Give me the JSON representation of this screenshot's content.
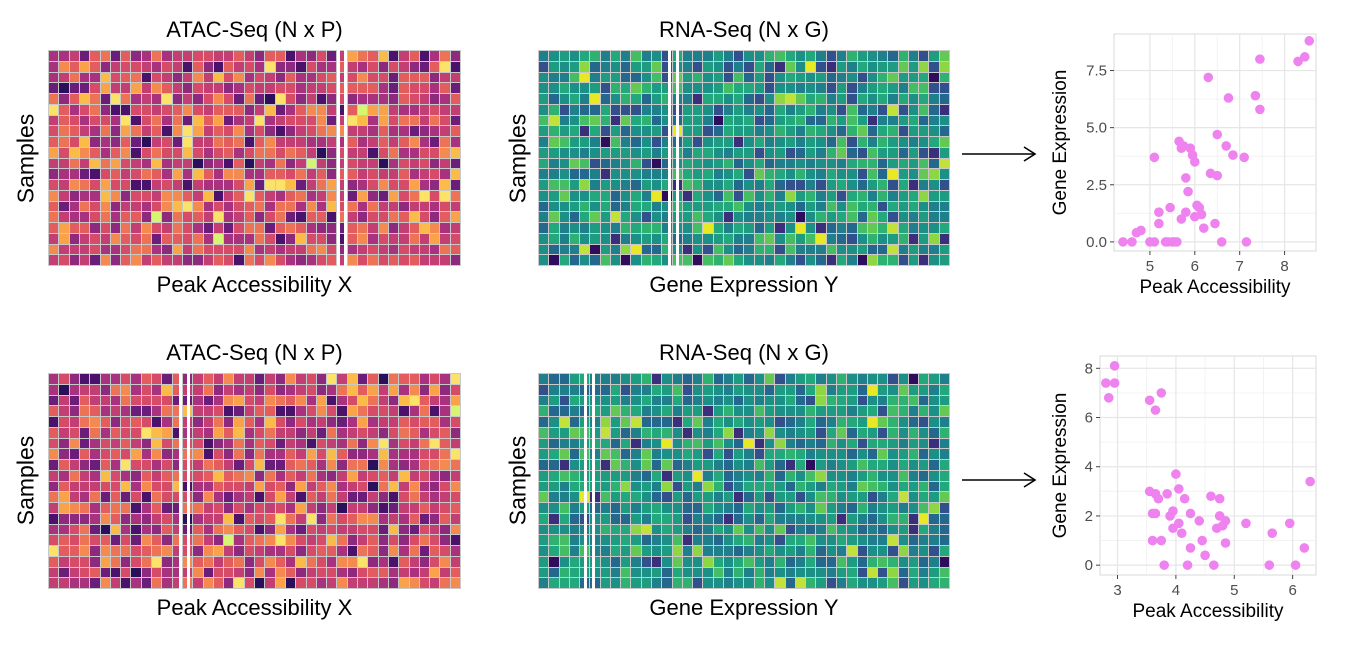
{
  "panels": [
    {
      "atac": {
        "title": "ATAC-Seq (N x P)",
        "xlabel": "Peak Accessibility  X",
        "ylabel": "Samples",
        "palette": "magma",
        "highlight_col": 33
      },
      "rna": {
        "title": "RNA-Seq (N x G)",
        "xlabel": "Gene Expression  Y",
        "ylabel": "Samples",
        "palette": "viridis",
        "highlight_col": 15
      }
    },
    {
      "atac": {
        "title": "ATAC-Seq (N x P)",
        "xlabel": "Peak Accessibility  X",
        "ylabel": "Samples",
        "palette": "magma",
        "highlight_col": 15
      },
      "rna": {
        "title": "RNA-Seq (N x G)",
        "xlabel": "Gene Expression  Y",
        "ylabel": "Samples",
        "palette": "viridis",
        "highlight_col": 5
      }
    }
  ],
  "heatmap_grid": {
    "rows": 20,
    "cols": 40
  },
  "arrow_icon": "right-arrow-icon",
  "colors": {
    "point": "#ee82ee",
    "grid": "#e6e6e6",
    "highlight": "#ffffff"
  },
  "chart_data": [
    {
      "type": "scatter",
      "xlabel": "Peak Accessibility",
      "ylabel": "Gene Expression",
      "xlim": [
        4.2,
        8.7
      ],
      "ylim": [
        -0.4,
        9.1
      ],
      "xticks": [
        5,
        6,
        7,
        8
      ],
      "yticks": [
        0.0,
        2.5,
        5.0,
        7.5
      ],
      "ytick_labels": [
        "0.0",
        "2.5",
        "5.0",
        "7.5"
      ],
      "xtick_labels": [
        "5",
        "6",
        "7",
        "8"
      ],
      "points": [
        [
          4.4,
          0.0
        ],
        [
          4.6,
          0.0
        ],
        [
          4.7,
          0.4
        ],
        [
          4.8,
          0.5
        ],
        [
          5.0,
          0.0
        ],
        [
          5.1,
          0.0
        ],
        [
          5.2,
          1.3
        ],
        [
          5.2,
          0.8
        ],
        [
          5.1,
          3.7
        ],
        [
          5.35,
          0.0
        ],
        [
          5.4,
          0.0
        ],
        [
          5.45,
          1.5
        ],
        [
          5.5,
          0.0
        ],
        [
          5.55,
          0.0
        ],
        [
          5.6,
          0.0
        ],
        [
          5.65,
          4.4
        ],
        [
          5.7,
          4.1
        ],
        [
          5.75,
          4.2
        ],
        [
          5.8,
          2.8
        ],
        [
          5.8,
          1.3
        ],
        [
          5.85,
          2.2
        ],
        [
          5.7,
          1.0
        ],
        [
          5.9,
          4.1
        ],
        [
          5.95,
          3.8
        ],
        [
          6.0,
          1.1
        ],
        [
          6.05,
          1.6
        ],
        [
          6.1,
          1.5
        ],
        [
          6.0,
          3.5
        ],
        [
          6.15,
          1.2
        ],
        [
          6.2,
          0.6
        ],
        [
          6.3,
          7.2
        ],
        [
          6.35,
          3.0
        ],
        [
          6.45,
          0.8
        ],
        [
          6.5,
          2.9
        ],
        [
          6.5,
          4.7
        ],
        [
          6.6,
          0.0
        ],
        [
          6.7,
          4.2
        ],
        [
          6.75,
          6.3
        ],
        [
          6.85,
          3.8
        ],
        [
          7.1,
          3.7
        ],
        [
          7.15,
          0.0
        ],
        [
          7.35,
          6.4
        ],
        [
          7.45,
          5.8
        ],
        [
          7.45,
          8.0
        ],
        [
          8.3,
          7.9
        ],
        [
          8.45,
          8.1
        ],
        [
          8.55,
          8.8
        ]
      ]
    },
    {
      "type": "scatter",
      "xlabel": "Peak Accessibility",
      "ylabel": "Gene Expression",
      "xlim": [
        2.7,
        6.4
      ],
      "ylim": [
        -0.4,
        8.5
      ],
      "xticks": [
        3,
        4,
        5,
        6
      ],
      "yticks": [
        0,
        2,
        4,
        6,
        8
      ],
      "ytick_labels": [
        "0",
        "2",
        "4",
        "6",
        "8"
      ],
      "xtick_labels": [
        "3",
        "4",
        "5",
        "6"
      ],
      "points": [
        [
          2.8,
          7.4
        ],
        [
          2.85,
          6.8
        ],
        [
          2.95,
          8.1
        ],
        [
          2.95,
          7.4
        ],
        [
          3.55,
          6.7
        ],
        [
          3.65,
          6.3
        ],
        [
          3.75,
          7.0
        ],
        [
          3.55,
          3.0
        ],
        [
          3.6,
          2.1
        ],
        [
          3.65,
          2.9
        ],
        [
          3.65,
          2.1
        ],
        [
          3.6,
          1.0
        ],
        [
          3.7,
          2.7
        ],
        [
          3.75,
          1.0
        ],
        [
          3.8,
          0.0
        ],
        [
          3.85,
          2.9
        ],
        [
          3.9,
          2.0
        ],
        [
          3.95,
          2.2
        ],
        [
          3.95,
          1.5
        ],
        [
          4.0,
          3.7
        ],
        [
          4.05,
          3.1
        ],
        [
          4.05,
          1.7
        ],
        [
          4.1,
          1.3
        ],
        [
          4.15,
          2.7
        ],
        [
          4.2,
          0.0
        ],
        [
          4.25,
          0.7
        ],
        [
          4.25,
          2.1
        ],
        [
          4.4,
          1.8
        ],
        [
          4.45,
          1.0
        ],
        [
          4.5,
          0.4
        ],
        [
          4.6,
          2.8
        ],
        [
          4.65,
          0.0
        ],
        [
          4.7,
          1.5
        ],
        [
          4.75,
          2.7
        ],
        [
          4.75,
          2.0
        ],
        [
          4.8,
          1.6
        ],
        [
          4.85,
          1.8
        ],
        [
          4.85,
          0.9
        ],
        [
          5.2,
          1.7
        ],
        [
          5.6,
          0.0
        ],
        [
          5.65,
          1.3
        ],
        [
          5.95,
          1.7
        ],
        [
          6.05,
          0.0
        ],
        [
          6.2,
          0.7
        ],
        [
          6.3,
          3.4
        ]
      ]
    }
  ]
}
